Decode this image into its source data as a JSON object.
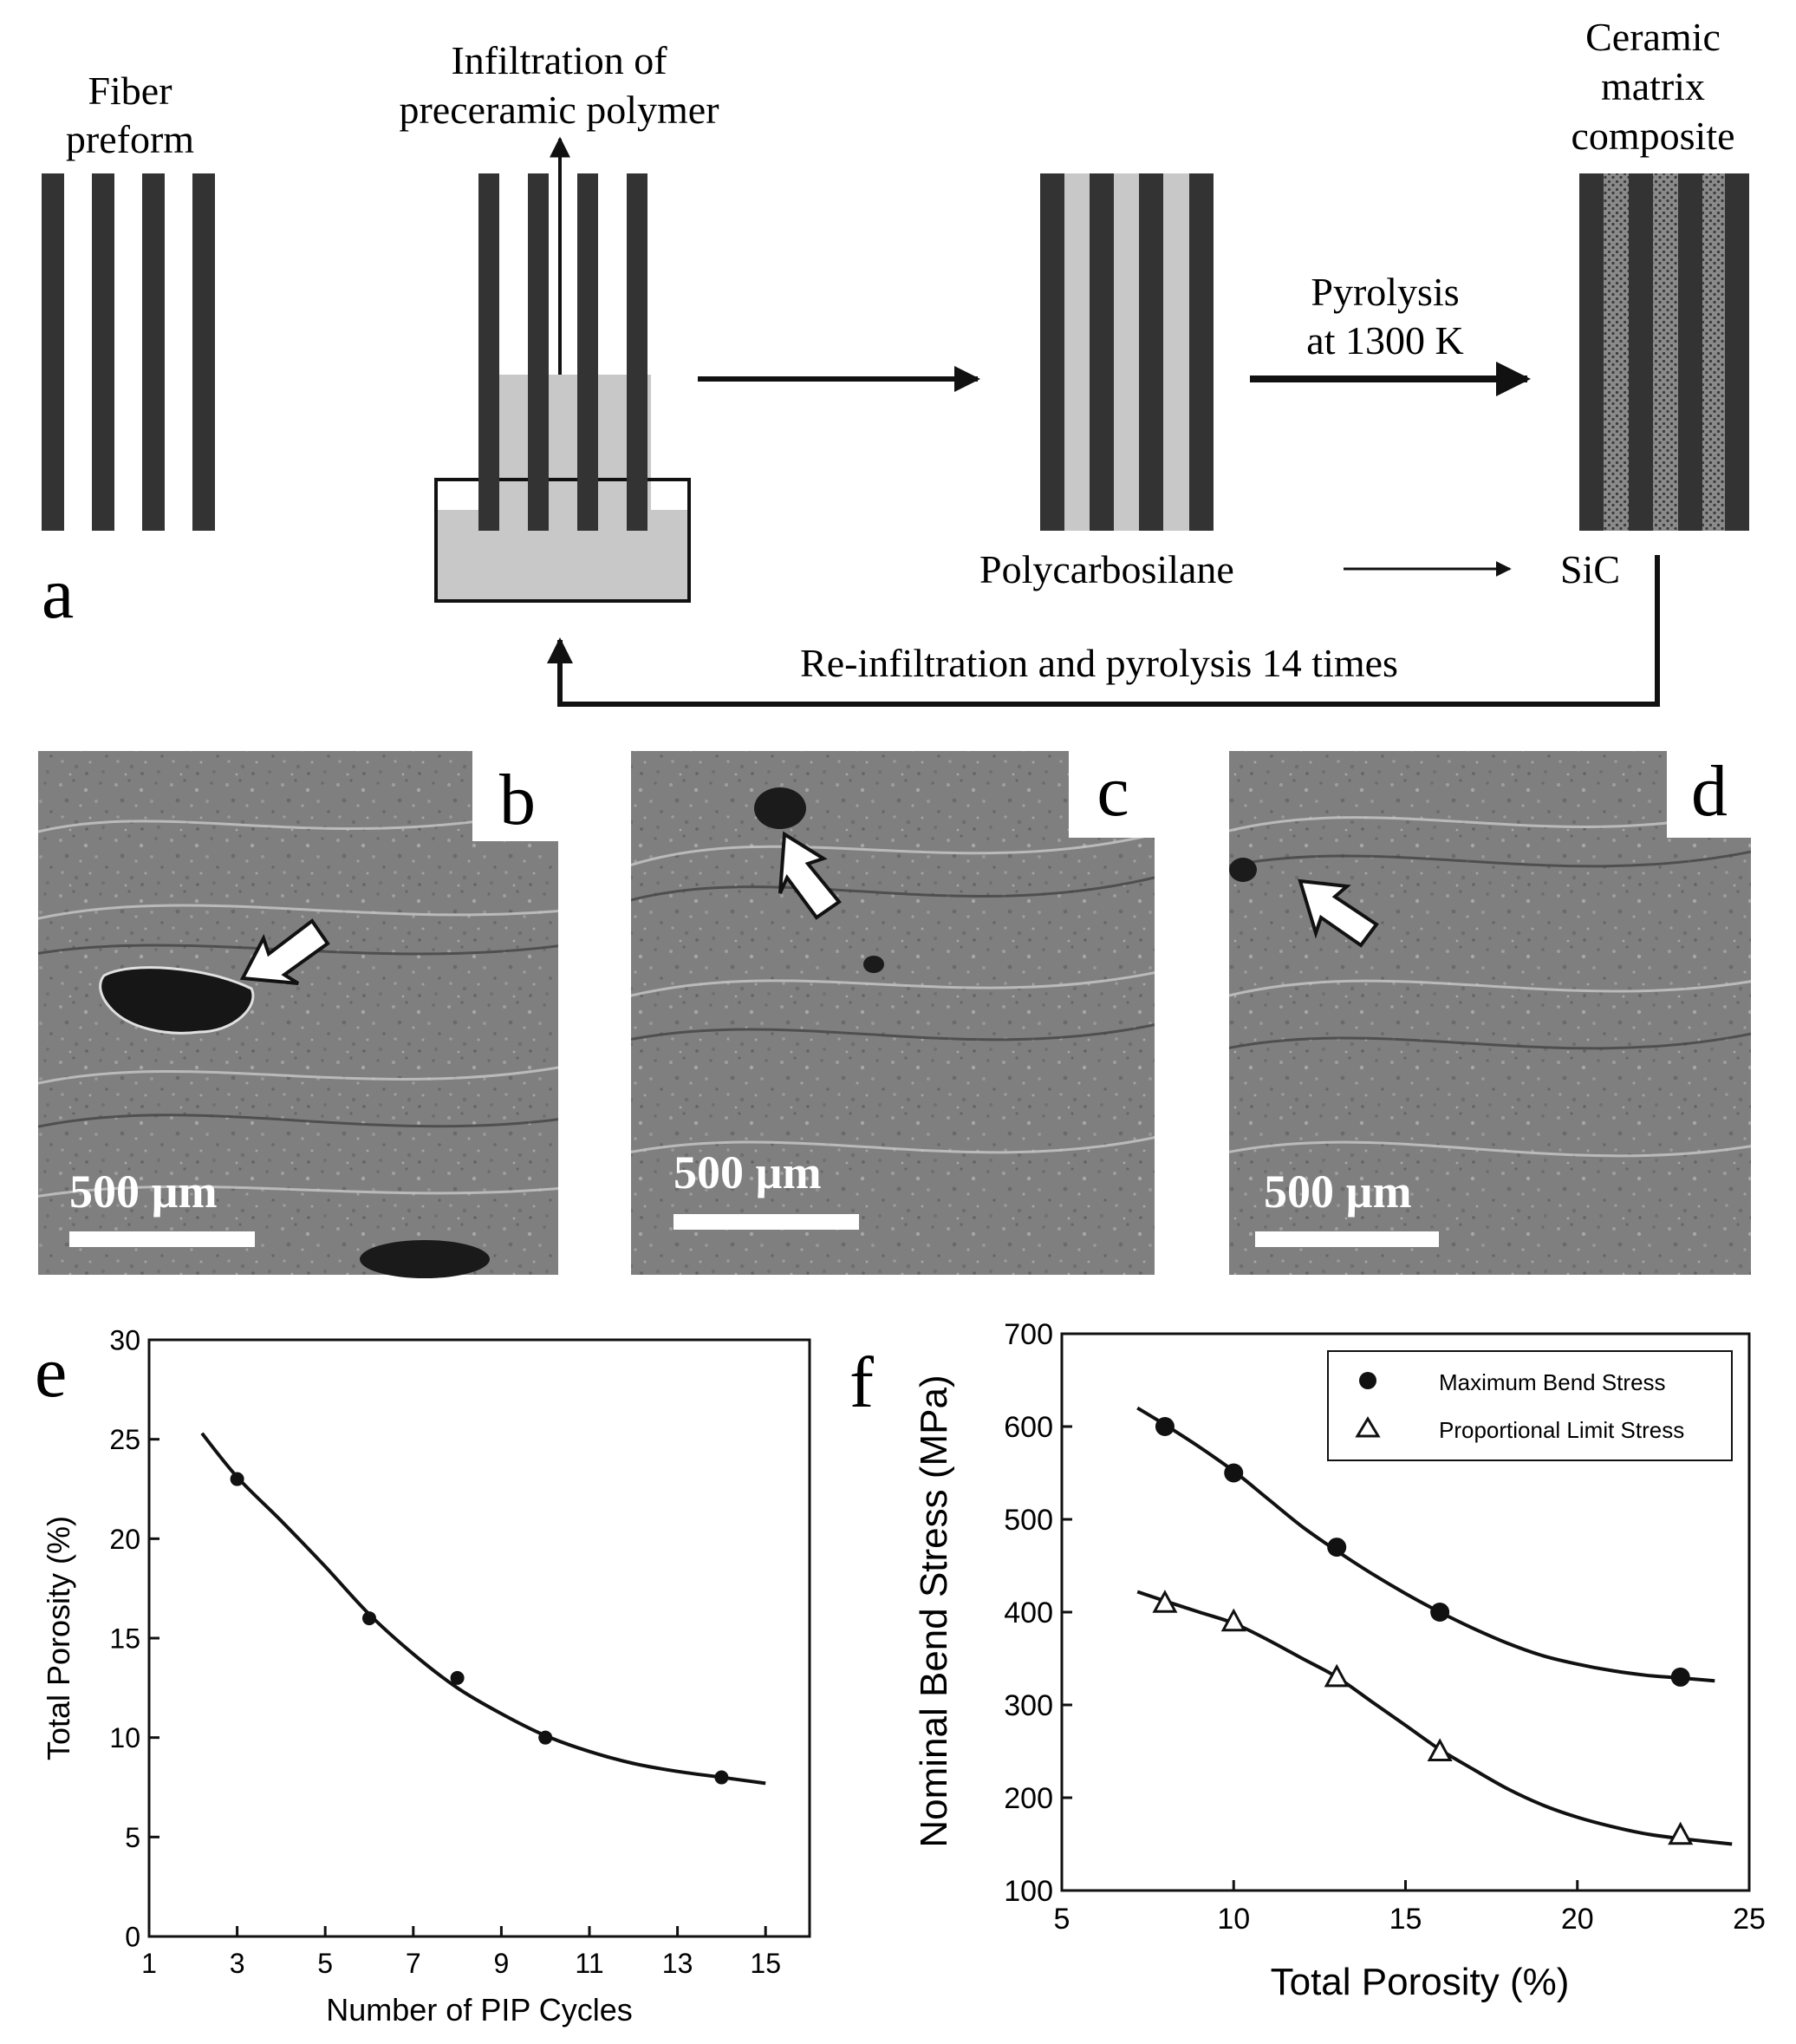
{
  "panel_letters": {
    "a": "a",
    "b": "b",
    "c": "c",
    "d": "d",
    "e": "e",
    "f": "f"
  },
  "schematic": {
    "fiber_preform_label": [
      "Fiber",
      "preform"
    ],
    "infiltration_label": [
      "Infiltration of",
      "preceramic polymer"
    ],
    "cmc_label": [
      "Ceramic",
      "matrix",
      "composite"
    ],
    "pyrolysis_label": [
      "Pyrolysis",
      "at 1300 K"
    ],
    "polymer_name": "Polycarbosilane",
    "ceramic_name": "SiC",
    "loop_label": "Re-infiltration and pyrolysis 14 times",
    "colors": {
      "fiber": "#333333",
      "polymer": "#c8c8c8",
      "arrow": "#111111"
    }
  },
  "micrographs": [
    {
      "id": "b",
      "scale_bar": "500 µm"
    },
    {
      "id": "c",
      "scale_bar": "500 µm"
    },
    {
      "id": "d",
      "scale_bar": "500 µm"
    }
  ],
  "chart_data": [
    {
      "panel": "e",
      "type": "scatter",
      "xlabel": "Number of PIP Cycles",
      "ylabel": "Total Porosity (%)",
      "xlim": [
        1,
        16
      ],
      "ylim": [
        0,
        30
      ],
      "xticks": [
        1,
        3,
        5,
        7,
        9,
        11,
        13,
        15
      ],
      "yticks": [
        0,
        5,
        10,
        15,
        20,
        25,
        30
      ],
      "series": [
        {
          "marker": "filled-circle",
          "x": [
            3,
            6,
            8,
            10,
            14
          ],
          "y": [
            23,
            16,
            13,
            10,
            8
          ]
        }
      ],
      "fit_curve": {
        "x": [
          2.2,
          3,
          4,
          5,
          6,
          7,
          8,
          9,
          10,
          11,
          12,
          13,
          14,
          15
        ],
        "y": [
          25.3,
          23.1,
          20.9,
          18.6,
          16.2,
          14.2,
          12.5,
          11.2,
          10.1,
          9.3,
          8.7,
          8.3,
          8.0,
          7.7
        ]
      },
      "grid": false
    },
    {
      "panel": "f",
      "type": "scatter",
      "xlabel": "Total Porosity (%)",
      "ylabel": "Nominal Bend Stress (MPa)",
      "xlim": [
        5,
        25
      ],
      "ylim": [
        100,
        700
      ],
      "xticks": [
        5,
        10,
        15,
        20,
        25
      ],
      "yticks": [
        100,
        200,
        300,
        400,
        500,
        600,
        700
      ],
      "legend_position": "top-right",
      "series": [
        {
          "name": "Maximum Bend Stress",
          "marker": "filled-circle",
          "x": [
            8,
            10,
            13,
            16,
            23
          ],
          "y": [
            600,
            550,
            470,
            400,
            330
          ]
        },
        {
          "name": "Proportional Limit Stress",
          "marker": "open-triangle",
          "x": [
            8,
            10,
            13,
            16,
            23
          ],
          "y": [
            410,
            390,
            330,
            250,
            160
          ]
        }
      ],
      "fit_curves": [
        {
          "x": [
            7.2,
            8,
            9,
            10,
            11,
            12,
            13,
            14,
            15,
            16,
            17,
            18,
            19,
            20,
            21,
            22,
            23,
            24
          ],
          "y": [
            620,
            602,
            578,
            552,
            522,
            492,
            466,
            442,
            420,
            400,
            382,
            366,
            353,
            344,
            337,
            332,
            329,
            326
          ]
        },
        {
          "x": [
            7.2,
            8,
            9,
            10,
            11,
            12,
            13,
            14,
            15,
            16,
            17,
            18,
            19,
            20,
            21,
            22,
            23,
            24.5
          ],
          "y": [
            422,
            412,
            400,
            388,
            370,
            350,
            330,
            304,
            278,
            252,
            230,
            209,
            192,
            179,
            169,
            161,
            156,
            150
          ]
        }
      ],
      "grid": false
    }
  ]
}
